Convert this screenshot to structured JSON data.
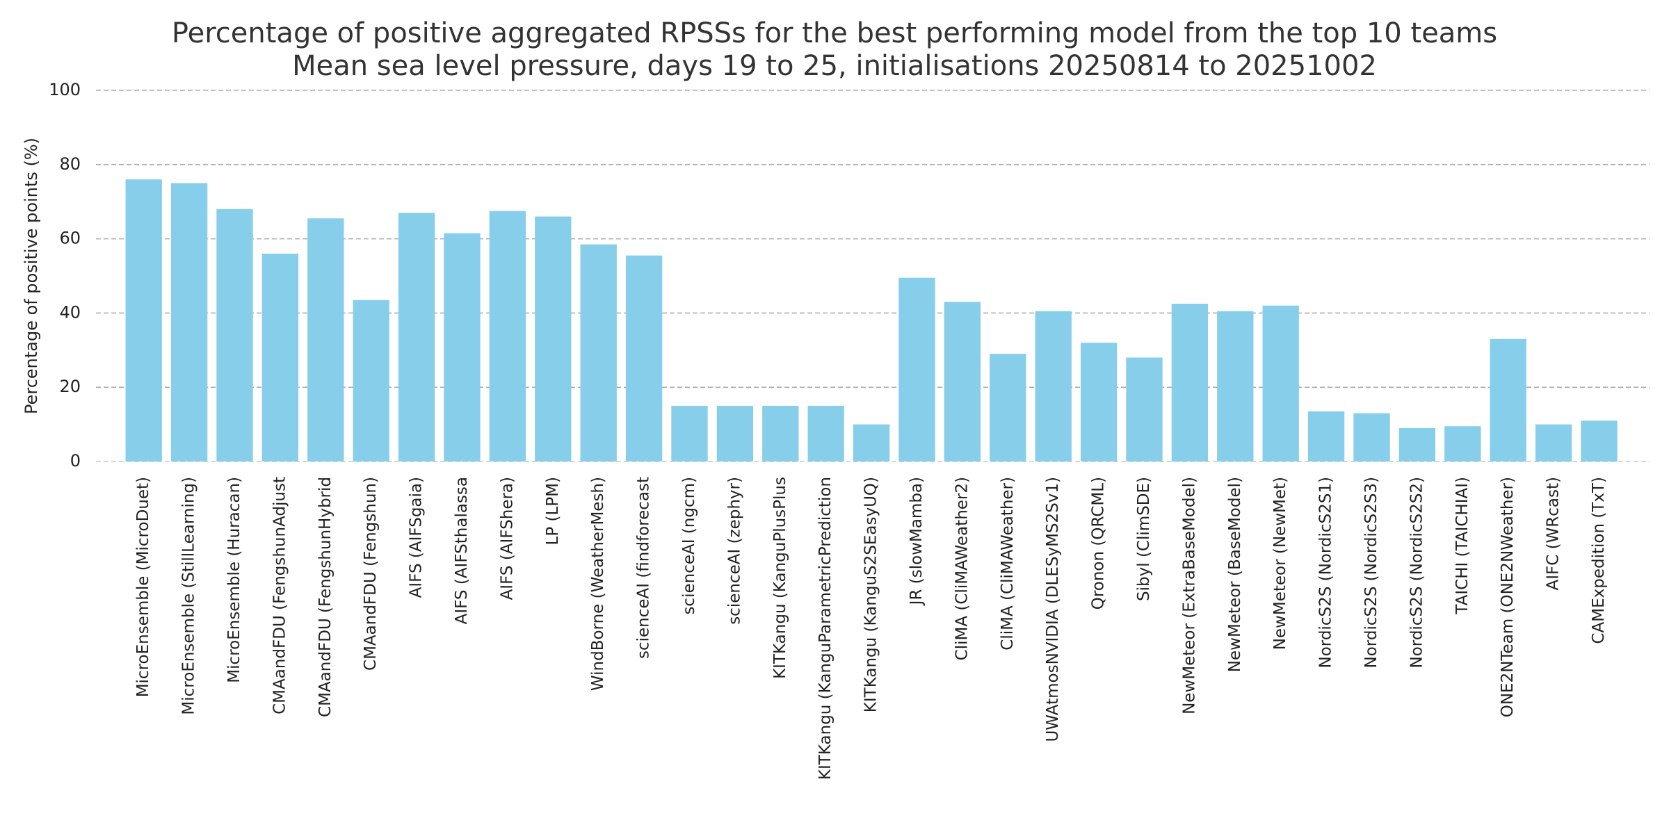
{
  "chart_data": {
    "type": "bar",
    "title": "Percentage of positive aggregated RPSSs for the best performing model from the top 10 teams",
    "subtitle": "Mean sea level pressure, days 19 to 25, initialisations 20250814 to 20251002",
    "y_label": "Percentage of positive points (%)",
    "categories": [
      "MicroEnsemble (MicroDuet)",
      "MicroEnsemble (StillLearning)",
      "MicroEnsemble (Huracan)",
      "CMAandFDU (FengshunAdjust",
      "CMAandFDU (FengshunHybrid",
      "CMAandFDU (Fengshun)",
      "AIFS (AIFSgaia)",
      "AIFS (AIFSthalassa",
      "AIFS (AIFShera)",
      "LP (LPM)",
      "WindBorne (WeatherMesh)",
      "scienceAI (findforecast",
      "scienceAI (ngcm)",
      "scienceAI (zephyr)",
      "KITKangu (KanguPlusPlus",
      "KITKangu (KanguParametricPrediction",
      "KITKangu (KanguS2SEasyUQ)",
      "JR (slowMamba)",
      "CliMA (CliMAWeather2)",
      "CliMA (CliMAWeather)",
      "UWAtmosNVIDIA (DLESyMS2Sv1)",
      "Qronon (QRCML)",
      "Sibyl (ClimSDE)",
      "NewMeteor (ExtraBaseModel)",
      "NewMeteor (BaseModel)",
      "NewMeteor (NewMet)",
      "NordicS2S (NordicS2S1)",
      "NordicS2S (NordicS2S3)",
      "NordicS2S (NordicS2S2)",
      "TAICHI (TAICHIAI)",
      "ONE2NTeam (ONE2NWeather)",
      "AIFC (WRcast)",
      "CAMExpedition (TxT)"
    ],
    "values": [
      76,
      75,
      68,
      56,
      65.5,
      43.5,
      67,
      61.5,
      67.5,
      66,
      58.5,
      55.5,
      15,
      15,
      15,
      15,
      10,
      49.5,
      43,
      29,
      40.5,
      32,
      28,
      42.5,
      40.5,
      42,
      13.5,
      13,
      9,
      9.5,
      33,
      10,
      11
    ],
    "color": "#87ceeb",
    "ylim": [
      0,
      100
    ],
    "yticks": [
      0,
      20,
      40,
      60,
      80,
      100
    ],
    "grid": true
  }
}
